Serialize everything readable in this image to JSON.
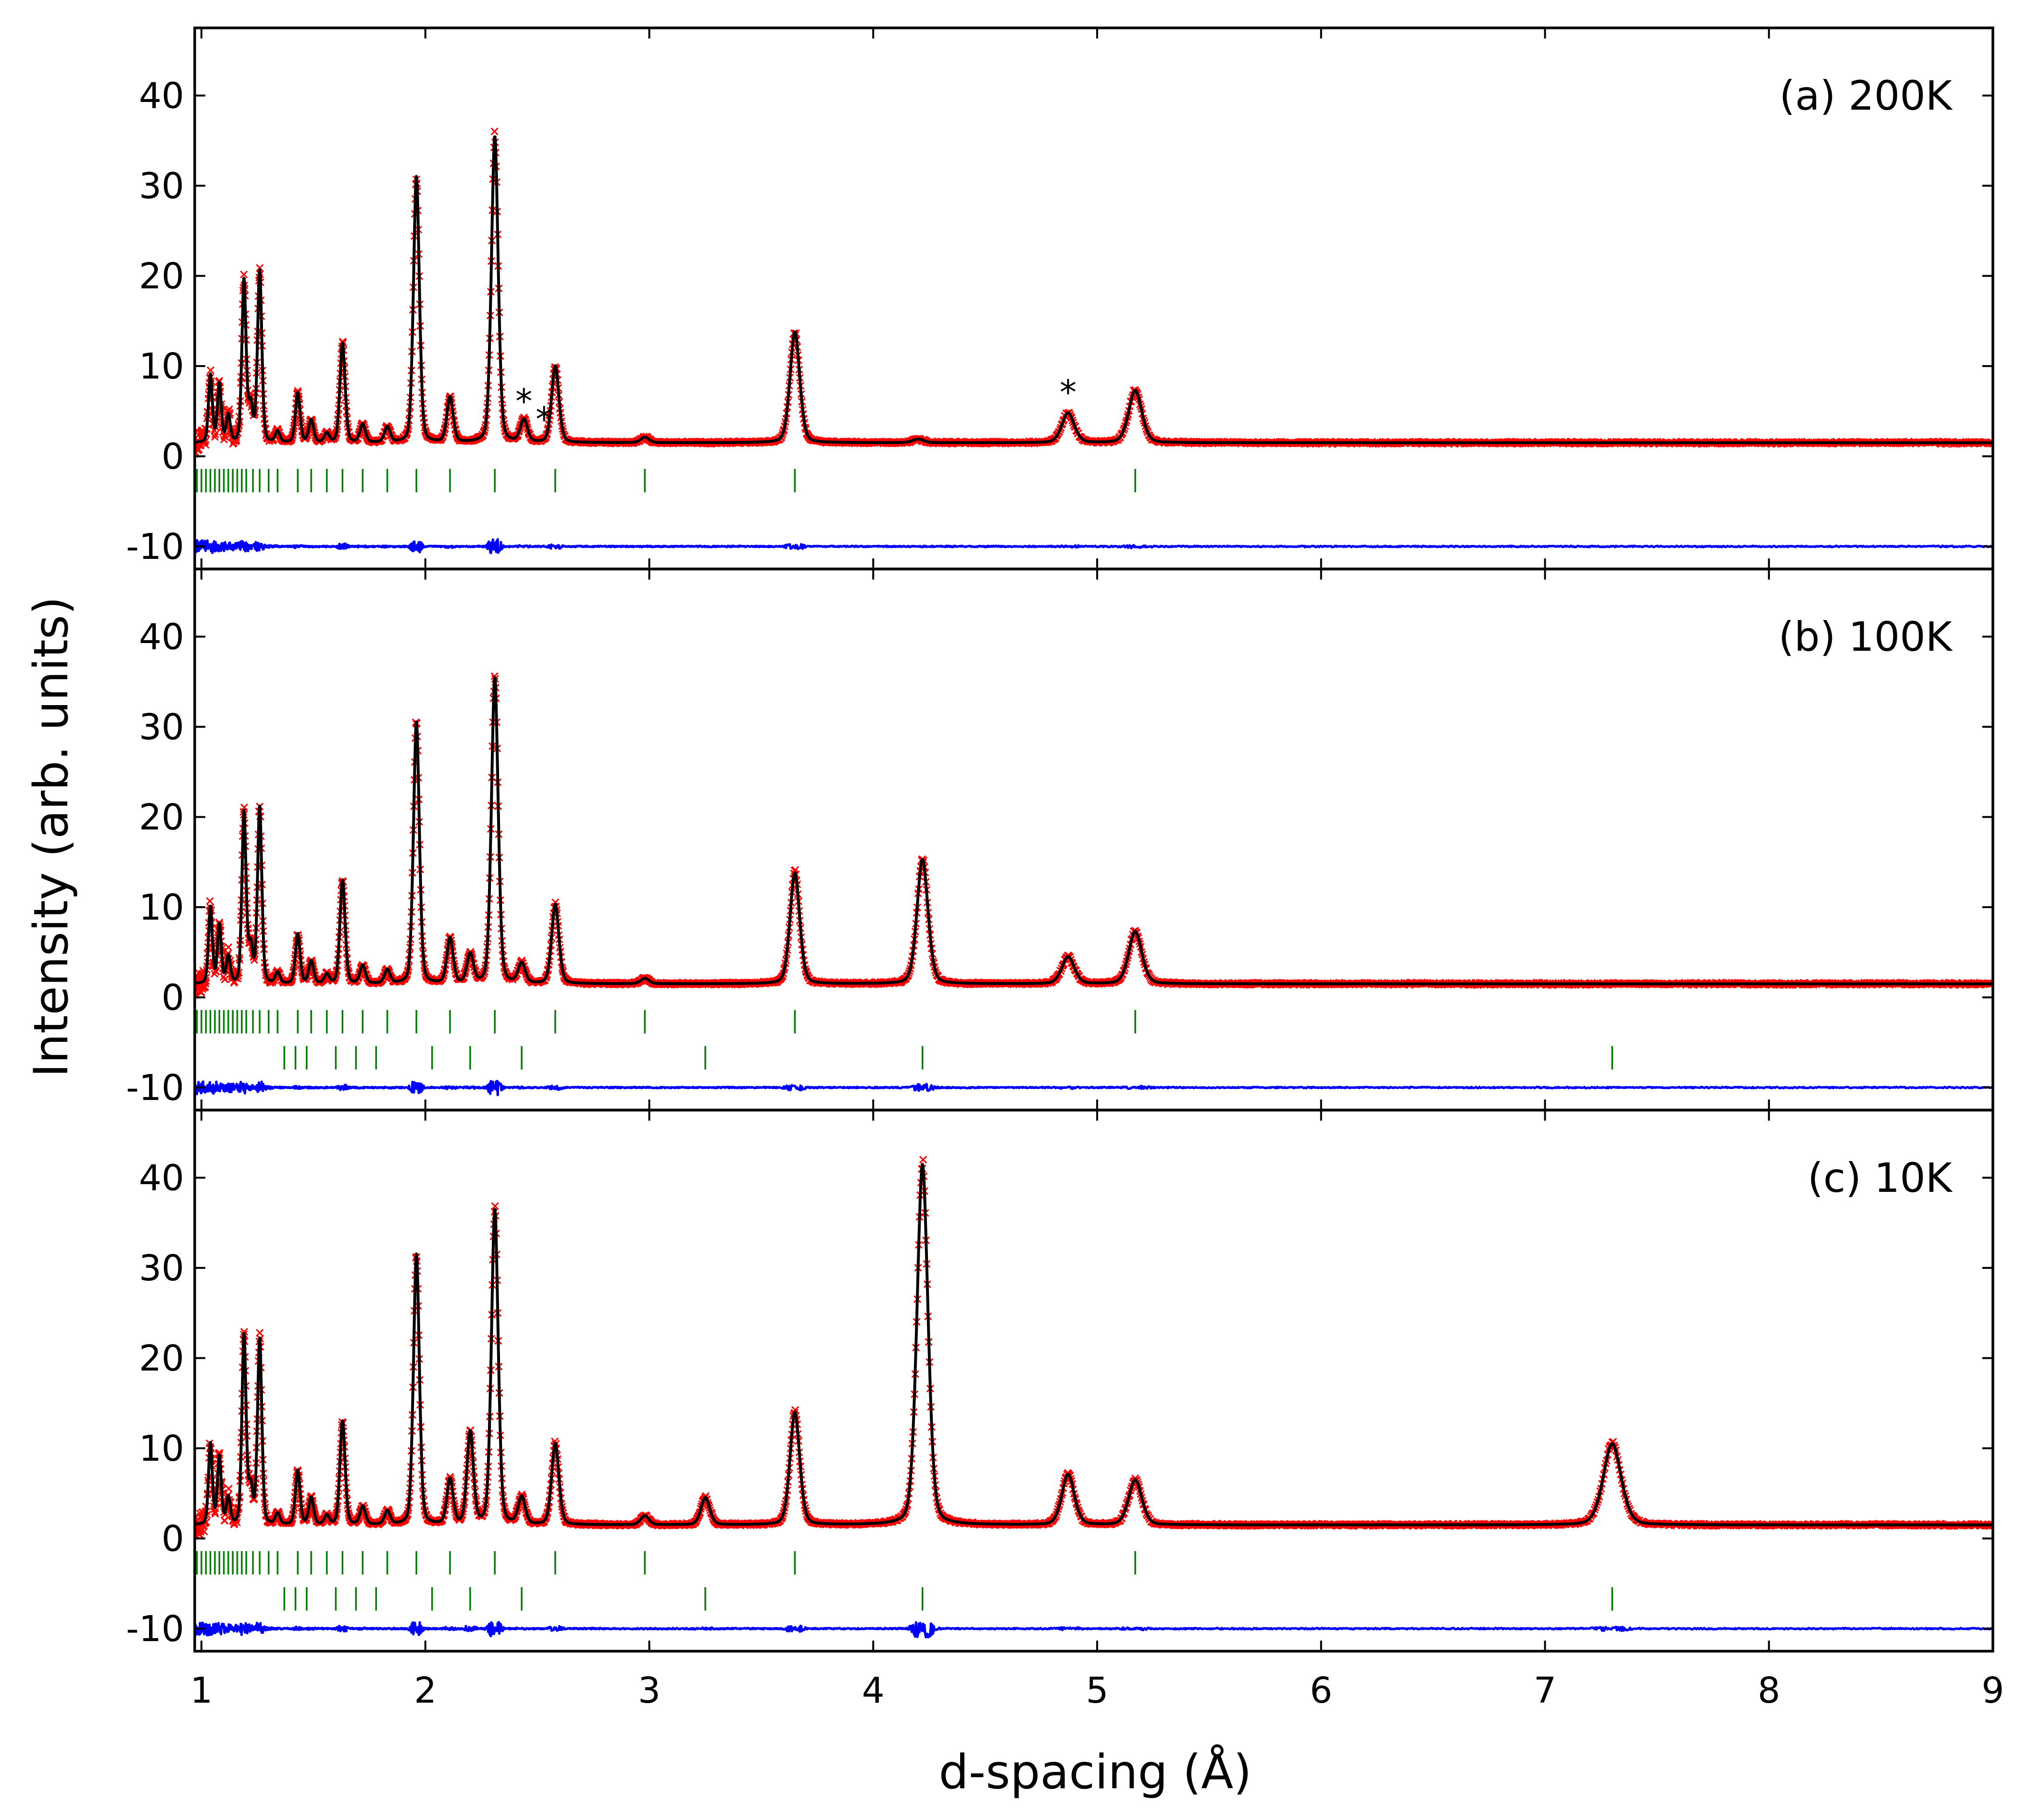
{
  "chart_data": {
    "type": "line",
    "xlabel": "d-spacing (Å)",
    "ylabel": "Intensity (arb. units)",
    "xlim": [
      0.97,
      9.0
    ],
    "x_ticks": [
      "1",
      "2",
      "3",
      "4",
      "5",
      "6",
      "7",
      "8",
      "9"
    ],
    "ylim": [
      -12.5,
      47.5
    ],
    "y_ticks": [
      "40",
      "30",
      "20",
      "10",
      "0",
      "-10"
    ],
    "grid": false,
    "colors": {
      "observed": "#ff0000",
      "calculated": "#000000",
      "difference": "#0000ff",
      "reflection_ticks": "#008000"
    },
    "background_level": 1.5,
    "difference_offset": -10,
    "main_phase_reflections": [
      0.98,
      1.0,
      1.02,
      1.04,
      1.06,
      1.08,
      1.1,
      1.12,
      1.14,
      1.16,
      1.18,
      1.2,
      1.23,
      1.26,
      1.3,
      1.34,
      1.43,
      1.49,
      1.56,
      1.63,
      1.72,
      1.83,
      1.96,
      2.11,
      2.31,
      2.58,
      2.98,
      3.65,
      5.17
    ],
    "magnetic_reflections": [
      1.37,
      1.42,
      1.47,
      1.6,
      1.69,
      1.78,
      2.03,
      2.2,
      2.43,
      3.25,
      4.22,
      7.3
    ],
    "panels": [
      {
        "label": "(a) 200K",
        "peaks": [
          [
            1.04,
            7.5
          ],
          [
            1.08,
            6.5
          ],
          [
            1.12,
            3.0
          ],
          [
            1.19,
            18.0
          ],
          [
            1.22,
            4.0
          ],
          [
            1.26,
            19.0
          ],
          [
            1.34,
            1.2
          ],
          [
            1.43,
            5.5
          ],
          [
            1.49,
            2.5
          ],
          [
            1.56,
            1.0
          ],
          [
            1.63,
            11.0
          ],
          [
            1.72,
            2.0
          ],
          [
            1.83,
            1.7
          ],
          [
            1.96,
            29.5
          ],
          [
            2.11,
            5.0
          ],
          [
            2.31,
            34.0
          ],
          [
            2.44,
            2.5
          ],
          [
            2.58,
            8.5
          ],
          [
            2.98,
            0.6
          ],
          [
            3.65,
            12.3
          ],
          [
            4.2,
            0.4
          ],
          [
            4.87,
            3.3
          ],
          [
            5.17,
            5.8
          ]
        ],
        "asterisks": [
          [
            2.44,
            4.8
          ],
          [
            2.53,
            2.8
          ],
          [
            4.87,
            5.8
          ]
        ],
        "show_magnetic": false
      },
      {
        "label": "(b) 100K",
        "peaks": [
          [
            1.04,
            8.5
          ],
          [
            1.08,
            6.5
          ],
          [
            1.12,
            3.0
          ],
          [
            1.19,
            19.0
          ],
          [
            1.22,
            4.0
          ],
          [
            1.26,
            19.5
          ],
          [
            1.34,
            1.2
          ],
          [
            1.43,
            5.5
          ],
          [
            1.49,
            2.5
          ],
          [
            1.56,
            1.0
          ],
          [
            1.63,
            11.5
          ],
          [
            1.72,
            2.0
          ],
          [
            1.83,
            1.5
          ],
          [
            1.96,
            29.0
          ],
          [
            2.11,
            5.0
          ],
          [
            2.2,
            3.2
          ],
          [
            2.31,
            34.0
          ],
          [
            2.43,
            2.2
          ],
          [
            2.58,
            8.8
          ],
          [
            2.98,
            0.6
          ],
          [
            3.65,
            12.3
          ],
          [
            4.22,
            13.8
          ],
          [
            4.87,
            3.0
          ],
          [
            5.17,
            5.8
          ]
        ],
        "asterisks": [],
        "show_magnetic": true
      },
      {
        "label": "(c) 10K",
        "peaks": [
          [
            1.04,
            9.0
          ],
          [
            1.08,
            7.5
          ],
          [
            1.12,
            3.0
          ],
          [
            1.19,
            21.0
          ],
          [
            1.22,
            4.0
          ],
          [
            1.26,
            20.5
          ],
          [
            1.34,
            1.2
          ],
          [
            1.43,
            6.0
          ],
          [
            1.49,
            3.0
          ],
          [
            1.56,
            1.0
          ],
          [
            1.63,
            11.5
          ],
          [
            1.72,
            2.0
          ],
          [
            1.83,
            1.5
          ],
          [
            1.96,
            30.0
          ],
          [
            2.11,
            5.0
          ],
          [
            2.2,
            10.2
          ],
          [
            2.31,
            35.0
          ],
          [
            2.43,
            3.0
          ],
          [
            2.58,
            9.0
          ],
          [
            2.98,
            1.0
          ],
          [
            3.25,
            3.0
          ],
          [
            3.65,
            12.5
          ],
          [
            4.22,
            40.0
          ],
          [
            4.87,
            5.6
          ],
          [
            5.17,
            5.0
          ],
          [
            7.3,
            9.0
          ]
        ],
        "asterisks": [],
        "show_magnetic": true
      }
    ]
  }
}
